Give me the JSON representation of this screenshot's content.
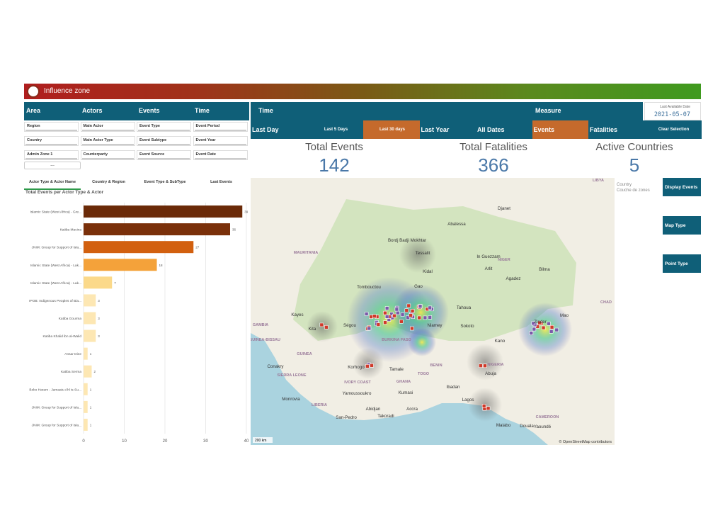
{
  "header": {
    "title": "Influence zone"
  },
  "filter_tabs": [
    "Area",
    "Actors",
    "Events",
    "Time"
  ],
  "time_label": "Time",
  "measure_label": "Measure",
  "last_available": {
    "label": "Last Available Date",
    "date": "2021-05-07"
  },
  "filters": [
    [
      "Region",
      "Main Actor",
      "Event Type",
      "Event Period"
    ],
    [
      "Country",
      "Main Actor Type",
      "Event Subtype",
      "Event Year"
    ],
    [
      "Admin Zone 1",
      "Counterparty",
      "Event Source",
      "Event Date"
    ]
  ],
  "more": "...",
  "time_buttons": [
    {
      "label": "Last Day",
      "selected": false
    },
    {
      "label": "Last 5 Days",
      "selected": false
    },
    {
      "label": "Last 30 days",
      "selected": true
    },
    {
      "label": "Last Year",
      "selected": false
    },
    {
      "label": "All Dates",
      "selected": false
    },
    {
      "label": "Events",
      "selected": true
    },
    {
      "label": "Fatalities",
      "selected": false
    },
    {
      "label": "Clear Selection",
      "selected": false
    }
  ],
  "kpis": [
    {
      "label": "Total Events",
      "value": 142
    },
    {
      "label": "Total Fatalities",
      "value": 366
    },
    {
      "label": "Active Countries",
      "value": 5
    }
  ],
  "chart_tabs": [
    "Actor Type & Actor Name",
    "Country & Region",
    "Event Type & SubType",
    "Last Events"
  ],
  "chart_data": {
    "type": "bar",
    "orientation": "horizontal",
    "title": "Total Events per Actor Type & Actor",
    "categories": [
      "Islamic State (West Africa) - Gre...",
      "Katiba Macina",
      "JNIM: Group for Support of Isla...",
      "Islamic State (West Africa) - Lak...",
      "Islamic State (West Africa) - Lak...",
      "IPOB: Indigenous Peoples of Bia...",
      "Katiba Gourma",
      "Katiba Khalid ibn al-Walid",
      "Ansar Dine",
      "Katiba Serma",
      "Boko Haram - Jamaatu Ahl is-Su...",
      "JNIM: Group for Support of Isla...",
      "JNIM: Group for Support of Isla..."
    ],
    "values": [
      39,
      36,
      27,
      18,
      7,
      3,
      3,
      3,
      1,
      2,
      1,
      1,
      1
    ],
    "colors": [
      "#6b2a08",
      "#7a300a",
      "#d2600f",
      "#f4a23a",
      "#fbd98a",
      "#fde7b3",
      "#fde7b3",
      "#fde7b3",
      "#fde7b3",
      "#fde7b3",
      "#fde7b3",
      "#fde7b3",
      "#fde7b3"
    ],
    "xlim": [
      0,
      40
    ],
    "xticks": [
      0,
      10,
      20,
      30,
      40
    ],
    "grid": true
  },
  "map": {
    "labels": [
      "MAURITANIA",
      "NIGER",
      "BURKINA FASO",
      "NIGERIA",
      "GHANA",
      "IVORY COAST",
      "GUINEA",
      "SIERRA LEONE",
      "LIBERIA",
      "TOGO",
      "BENIN",
      "GAMBIA",
      "GUINEA-BISSAU",
      "CAMEROON",
      "CHAD",
      "LIBYA",
      "Bordj Badji Mokhtar",
      "Tessalit",
      "Kidal",
      "Abalessa",
      "In Guezzam",
      "Tombouctou",
      "Gao",
      "Arlit",
      "Agadez",
      "Tahoua",
      "Niamey",
      "Zinder",
      "Sokoto",
      "Kano",
      "Ségou",
      "Kayes",
      "Kita",
      "Abidjan",
      "Accra",
      "Lagos",
      "Abuja",
      "Douala",
      "Yaoundé",
      "Malabo",
      "Mao",
      "Bilma",
      "Djanet",
      "Conakry",
      "Monrovia",
      "Korhogo",
      "Tamale",
      "Kumasi",
      "Ibadan",
      "Takoradi",
      "San-Pedro",
      "Yamoussoukro"
    ],
    "scale": "200 km",
    "attribution": "© OpenStreetMap contributors",
    "legend": [
      "Country",
      "Couche de zones"
    ]
  },
  "side_buttons": [
    "Display Events",
    "Map Type",
    "Point Type"
  ]
}
